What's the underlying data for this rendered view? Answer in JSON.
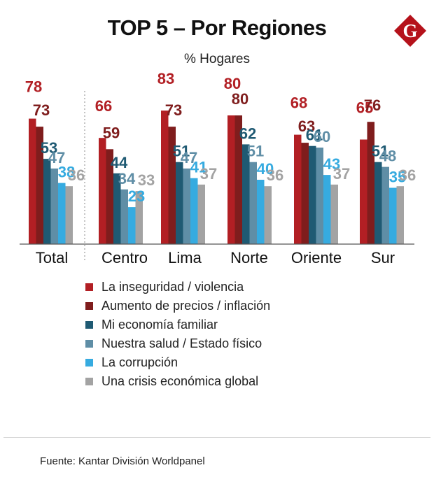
{
  "header": {
    "title": "TOP 5 – Por Regiones",
    "subtitle": "% Hogares",
    "logo_letter": "G"
  },
  "colors": {
    "brand": "#b5121b",
    "axis": "#555555",
    "series": [
      "#b21f24",
      "#7f1d1d",
      "#1f5a73",
      "#5f8ea6",
      "#36abe0",
      "#a3a3a3"
    ]
  },
  "chart_data": {
    "type": "bar",
    "categories": [
      "Total",
      "Centro",
      "Lima",
      "Norte",
      "Oriente",
      "Sur"
    ],
    "series": [
      {
        "name": "La inseguridad / violencia",
        "values": [
          78,
          66,
          83,
          80,
          68,
          65
        ]
      },
      {
        "name": "Aumento de precios / inflación",
        "values": [
          73,
          59,
          73,
          80,
          63,
          76
        ]
      },
      {
        "name": "Mi economía familiar",
        "values": [
          53,
          44,
          51,
          62,
          61,
          51
        ]
      },
      {
        "name": "Nuestra salud / Estado físico",
        "values": [
          47,
          34,
          47,
          51,
          60,
          48
        ]
      },
      {
        "name": "La corrupción",
        "values": [
          38,
          23,
          41,
          40,
          43,
          35
        ]
      },
      {
        "name": "Una crisis económica global",
        "values": [
          36,
          33,
          37,
          36,
          37,
          36
        ]
      }
    ],
    "title": "TOP 5 – Por Regiones",
    "ylabel": "% Hogares",
    "ylim": [
      0,
      100
    ],
    "grid": false,
    "legend_position": "bottom"
  },
  "footer": {
    "source": "Fuente: Kantar División Worldpanel"
  }
}
